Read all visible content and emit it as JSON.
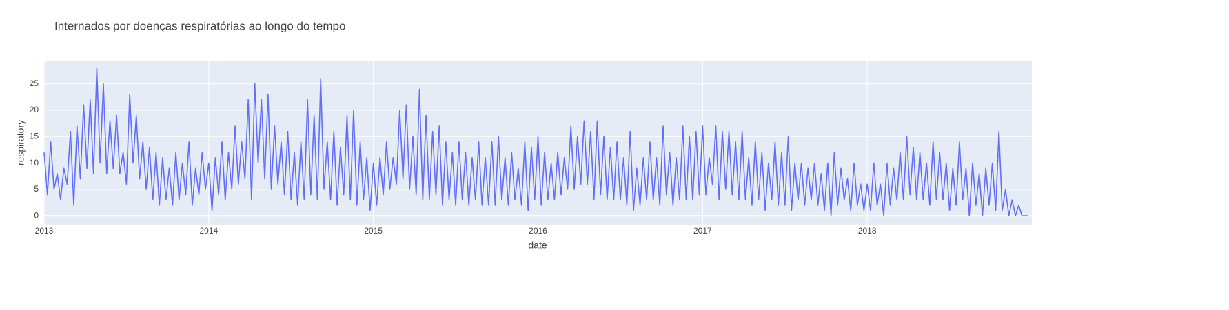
{
  "chart_data": {
    "type": "line",
    "title": "Internados por doenças respiratórias ao longo do tempo",
    "xlabel": "date",
    "ylabel": "respiratory",
    "color": "#636efa",
    "xlim": [
      2013,
      2019
    ],
    "xticks": [
      2013,
      2014,
      2015,
      2016,
      2017,
      2018
    ],
    "ylim": [
      -1.8,
      29.4
    ],
    "yticks": [
      0,
      5,
      10,
      15,
      20,
      25
    ],
    "grid": true,
    "x": [
      2013,
      2013.02,
      2013.04,
      2013.06,
      2013.08,
      2013.1,
      2013.12,
      2013.14,
      2013.16,
      2013.18,
      2013.2,
      2013.22,
      2013.24,
      2013.26,
      2013.28,
      2013.3,
      2013.32,
      2013.34,
      2013.36,
      2013.38,
      2013.4,
      2013.42,
      2013.44,
      2013.46,
      2013.48,
      2013.5,
      2013.52,
      2013.54,
      2013.56,
      2013.58,
      2013.6,
      2013.62,
      2013.64,
      2013.66,
      2013.68,
      2013.7,
      2013.72,
      2013.74,
      2013.76,
      2013.78,
      2013.8,
      2013.82,
      2013.84,
      2013.86,
      2013.88,
      2013.9,
      2013.92,
      2013.94,
      2013.96,
      2013.98,
      2014,
      2014.02,
      2014.04,
      2014.06,
      2014.08,
      2014.1,
      2014.12,
      2014.14,
      2014.16,
      2014.18,
      2014.2,
      2014.22,
      2014.24,
      2014.26,
      2014.28,
      2014.3,
      2014.32,
      2014.34,
      2014.36,
      2014.38,
      2014.4,
      2014.42,
      2014.44,
      2014.46,
      2014.48,
      2014.5,
      2014.52,
      2014.54,
      2014.56,
      2014.58,
      2014.6,
      2014.62,
      2014.64,
      2014.66,
      2014.68,
      2014.7,
      2014.72,
      2014.74,
      2014.76,
      2014.78,
      2014.8,
      2014.82,
      2014.84,
      2014.86,
      2014.88,
      2014.9,
      2014.92,
      2014.94,
      2014.96,
      2014.98,
      2015,
      2015.02,
      2015.04,
      2015.06,
      2015.08,
      2015.1,
      2015.12,
      2015.14,
      2015.16,
      2015.18,
      2015.2,
      2015.22,
      2015.24,
      2015.26,
      2015.28,
      2015.3,
      2015.32,
      2015.34,
      2015.36,
      2015.38,
      2015.4,
      2015.42,
      2015.44,
      2015.46,
      2015.48,
      2015.5,
      2015.52,
      2015.54,
      2015.56,
      2015.58,
      2015.6,
      2015.62,
      2015.64,
      2015.66,
      2015.68,
      2015.7,
      2015.72,
      2015.74,
      2015.76,
      2015.78,
      2015.8,
      2015.82,
      2015.84,
      2015.86,
      2015.88,
      2015.9,
      2015.92,
      2015.94,
      2015.96,
      2015.98,
      2016,
      2016.02,
      2016.04,
      2016.06,
      2016.08,
      2016.1,
      2016.12,
      2016.14,
      2016.16,
      2016.18,
      2016.2,
      2016.22,
      2016.24,
      2016.26,
      2016.28,
      2016.3,
      2016.32,
      2016.34,
      2016.36,
      2016.38,
      2016.4,
      2016.42,
      2016.44,
      2016.46,
      2016.48,
      2016.5,
      2016.52,
      2016.54,
      2016.56,
      2016.58,
      2016.6,
      2016.62,
      2016.64,
      2016.66,
      2016.68,
      2016.7,
      2016.72,
      2016.74,
      2016.76,
      2016.78,
      2016.8,
      2016.82,
      2016.84,
      2016.86,
      2016.88,
      2016.9,
      2016.92,
      2016.94,
      2016.96,
      2016.98,
      2017,
      2017.02,
      2017.04,
      2017.06,
      2017.08,
      2017.1,
      2017.12,
      2017.14,
      2017.16,
      2017.18,
      2017.2,
      2017.22,
      2017.24,
      2017.26,
      2017.28,
      2017.3,
      2017.32,
      2017.34,
      2017.36,
      2017.38,
      2017.4,
      2017.42,
      2017.44,
      2017.46,
      2017.48,
      2017.5,
      2017.52,
      2017.54,
      2017.56,
      2017.58,
      2017.6,
      2017.62,
      2017.64,
      2017.66,
      2017.68,
      2017.7,
      2017.72,
      2017.74,
      2017.76,
      2017.78,
      2017.8,
      2017.82,
      2017.84,
      2017.86,
      2017.88,
      2017.9,
      2017.92,
      2017.94,
      2017.96,
      2017.98,
      2018,
      2018.02,
      2018.04,
      2018.06,
      2018.08,
      2018.1,
      2018.12,
      2018.14,
      2018.16,
      2018.18,
      2018.2,
      2018.22,
      2018.24,
      2018.26,
      2018.28,
      2018.3,
      2018.32,
      2018.34,
      2018.36,
      2018.38,
      2018.4,
      2018.42,
      2018.44,
      2018.46,
      2018.48,
      2018.5,
      2018.52,
      2018.54,
      2018.56,
      2018.58,
      2018.6,
      2018.62,
      2018.64,
      2018.66,
      2018.68,
      2018.7,
      2018.72,
      2018.74,
      2018.76,
      2018.78,
      2018.8,
      2018.82,
      2018.84,
      2018.86,
      2018.88,
      2018.9,
      2018.92,
      2018.94,
      2018.96,
      2018.98
    ],
    "values": [
      12,
      4,
      14,
      5,
      8,
      3,
      9,
      6,
      16,
      2,
      17,
      7,
      21,
      9,
      22,
      8,
      28,
      10,
      25,
      8,
      18,
      9,
      19,
      8,
      12,
      6,
      23,
      10,
      19,
      7,
      14,
      5,
      13,
      3,
      12,
      2,
      11,
      3,
      9,
      2,
      12,
      3,
      10,
      4,
      14,
      2,
      9,
      4,
      12,
      5,
      10,
      1,
      11,
      4,
      14,
      3,
      12,
      5,
      17,
      6,
      14,
      7,
      22,
      3,
      25,
      10,
      22,
      7,
      23,
      5,
      17,
      6,
      14,
      4,
      16,
      3,
      12,
      2,
      14,
      3,
      22,
      4,
      19,
      3,
      26,
      5,
      14,
      3,
      16,
      2,
      13,
      4,
      19,
      3,
      20,
      2,
      14,
      3,
      11,
      1,
      10,
      2,
      11,
      4,
      14,
      5,
      11,
      6,
      20,
      7,
      21,
      5,
      15,
      4,
      24,
      3,
      19,
      3,
      16,
      4,
      17,
      2,
      14,
      3,
      12,
      2,
      14,
      3,
      12,
      2,
      11,
      3,
      14,
      2,
      11,
      2,
      14,
      2,
      15,
      3,
      11,
      2,
      12,
      3,
      9,
      2,
      14,
      1,
      13,
      3,
      15,
      2,
      12,
      3,
      10,
      3,
      12,
      4,
      11,
      5,
      17,
      5,
      15,
      6,
      18,
      6,
      16,
      3,
      18,
      4,
      15,
      3,
      13,
      3,
      14,
      3,
      11,
      2,
      16,
      1,
      9,
      2,
      11,
      3,
      14,
      3,
      11,
      2,
      17,
      4,
      12,
      2,
      11,
      3,
      17,
      3,
      15,
      3,
      16,
      4,
      17,
      4,
      11,
      6,
      17,
      3,
      16,
      5,
      16,
      4,
      14,
      3,
      16,
      3,
      11,
      2,
      14,
      3,
      12,
      1,
      10,
      3,
      14,
      2,
      12,
      2,
      15,
      1,
      10,
      3,
      10,
      2,
      9,
      3,
      10,
      2,
      8,
      1,
      10,
      0,
      12,
      2,
      9,
      3,
      7,
      1,
      10,
      2,
      6,
      1,
      6,
      1,
      10,
      2,
      6,
      0,
      10,
      2,
      9,
      3,
      12,
      3,
      15,
      4,
      13,
      3,
      12,
      3,
      10,
      2,
      14,
      3,
      12,
      3,
      10,
      1,
      9,
      2,
      14,
      3,
      9,
      0,
      10,
      2,
      8,
      0,
      9,
      2,
      10,
      1,
      16,
      1,
      5,
      0,
      3,
      0,
      2,
      0,
      0,
      0
    ]
  }
}
